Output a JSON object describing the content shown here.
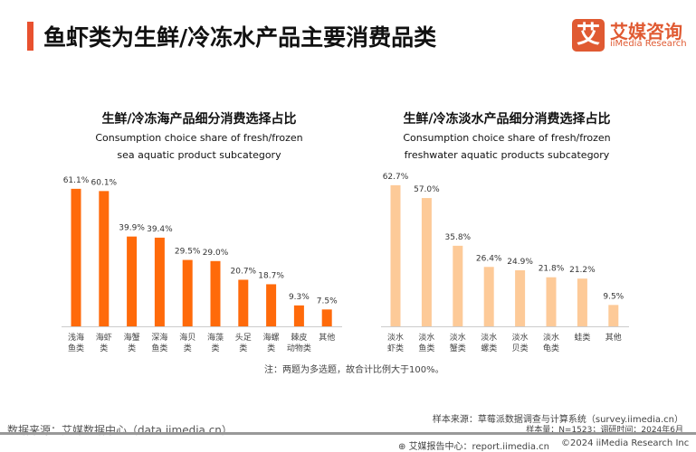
{
  "header": {
    "title": "鱼虾类为生鲜/冷冻水产品主要消费品类"
  },
  "logo": {
    "mark": "艾",
    "cn": "艾媒咨询",
    "en": "iiMedia Research"
  },
  "chart_data": [
    {
      "type": "bar",
      "title": "生鲜/冷冻海产品细分消费选择占比",
      "subtitle": "Consumption choice share of fresh/frozen sea aquatic product subcategory",
      "categories": [
        "浅海\n鱼类",
        "海虾\n类",
        "海蟹\n类",
        "深海\n鱼类",
        "海贝\n类",
        "海藻\n类",
        "头足\n类",
        "海螺\n类",
        "棘皮\n动物类",
        "其他"
      ],
      "values": [
        61.1,
        60.1,
        39.9,
        39.4,
        29.5,
        29.0,
        20.7,
        18.7,
        9.3,
        7.5
      ],
      "unit": "%",
      "color": "#ff6a0a",
      "ylim": [
        0,
        65
      ],
      "grid": false
    },
    {
      "type": "bar",
      "title": "生鲜/冷冻淡水产品细分消费选择占比",
      "subtitle": "Consumption choice share of fresh/frozen freshwater aquatic products subcategory",
      "categories": [
        "淡水\n虾类",
        "淡水\n鱼类",
        "淡水\n蟹类",
        "淡水\n螺类",
        "淡水\n贝类",
        "淡水\n龟类",
        "蛙类",
        "其他"
      ],
      "values": [
        62.7,
        57.0,
        35.8,
        26.4,
        24.9,
        21.8,
        21.2,
        9.5
      ],
      "unit": "%",
      "color": "#fdca98",
      "ylim": [
        0,
        65
      ],
      "grid": false
    }
  ],
  "note": "注：两题为多选题，故合计比例大于100%。",
  "footer": {
    "source": "数据来源：艾媒数据中心（data.iimedia.cn）",
    "sample_source": "样本来源：草莓派数据调查与计算系统（survey.iimedia.cn）",
    "sample_size": "样本量：N=1523；调研时间：2024年6月",
    "report": "艾媒报告中心：report.iimedia.cn",
    "copyright": "©2024  iiMedia Research  Inc"
  }
}
